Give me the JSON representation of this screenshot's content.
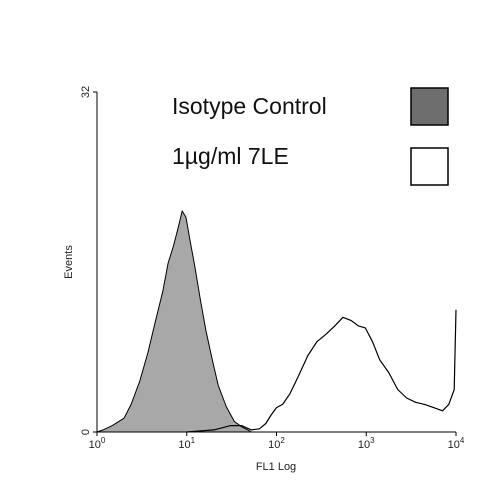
{
  "chart_data": {
    "type": "histogram-overlay",
    "xlabel": "FL1 Log",
    "ylabel": "Events",
    "x_scale": "log",
    "xlim": [
      1,
      10000
    ],
    "ylim": [
      0,
      32
    ],
    "x_ticks": [
      {
        "value": 1,
        "base": "10",
        "exp": "0"
      },
      {
        "value": 10,
        "base": "10",
        "exp": "1"
      },
      {
        "value": 100,
        "base": "10",
        "exp": "2"
      },
      {
        "value": 1000,
        "base": "10",
        "exp": "3"
      },
      {
        "value": 10000,
        "base": "10",
        "exp": "4"
      }
    ],
    "y_ticks": [
      {
        "value": 0,
        "label": "0"
      },
      {
        "value": 32,
        "label": "32"
      }
    ],
    "legend_placement": "top-right",
    "series": [
      {
        "name": "Isotype Control",
        "style": "filled",
        "fill_color": "#a8a8a8",
        "legend_swatch_color": "#6e6e6e",
        "x": [
          1.0,
          1.17,
          1.48,
          2.0,
          2.4,
          3.0,
          3.7,
          4.5,
          5.4,
          6.2,
          7.1,
          8.0,
          8.9,
          9.8,
          10.9,
          12.3,
          14.1,
          16.3,
          19.0,
          22.4,
          27.5,
          33.9,
          40.7,
          47.9,
          52.5
        ],
        "y": [
          0.0,
          0.2,
          0.6,
          1.3,
          2.6,
          4.8,
          7.5,
          10.5,
          13.2,
          15.9,
          17.5,
          19.2,
          20.8,
          20.2,
          18.0,
          15.6,
          12.6,
          9.6,
          7.0,
          4.4,
          2.4,
          1.0,
          0.5,
          0.2,
          0.0
        ]
      },
      {
        "name": "1µg/ml 7LE",
        "style": "outline",
        "line_color": "#000000",
        "legend_swatch_color": "#ffffff",
        "x": [
          10.0,
          20.0,
          30.9,
          40.7,
          52.5,
          64.6,
          75.9,
          87.1,
          100,
          117,
          141,
          174,
          224,
          282,
          355,
          447,
          550,
          676,
          813,
          977,
          1175,
          1413,
          1778,
          2239,
          2818,
          3548,
          4467,
          5623,
          7079,
          8318,
          9550,
          10000
        ],
        "y": [
          0.0,
          0.2,
          0.6,
          0.6,
          0.2,
          0.3,
          0.8,
          1.6,
          2.3,
          2.6,
          3.6,
          5.2,
          7.2,
          8.5,
          9.2,
          10.0,
          10.8,
          10.5,
          10.0,
          9.8,
          8.5,
          6.8,
          5.6,
          4.0,
          3.2,
          2.8,
          2.6,
          2.3,
          2.0,
          2.6,
          4.0,
          11.5
        ]
      }
    ]
  }
}
